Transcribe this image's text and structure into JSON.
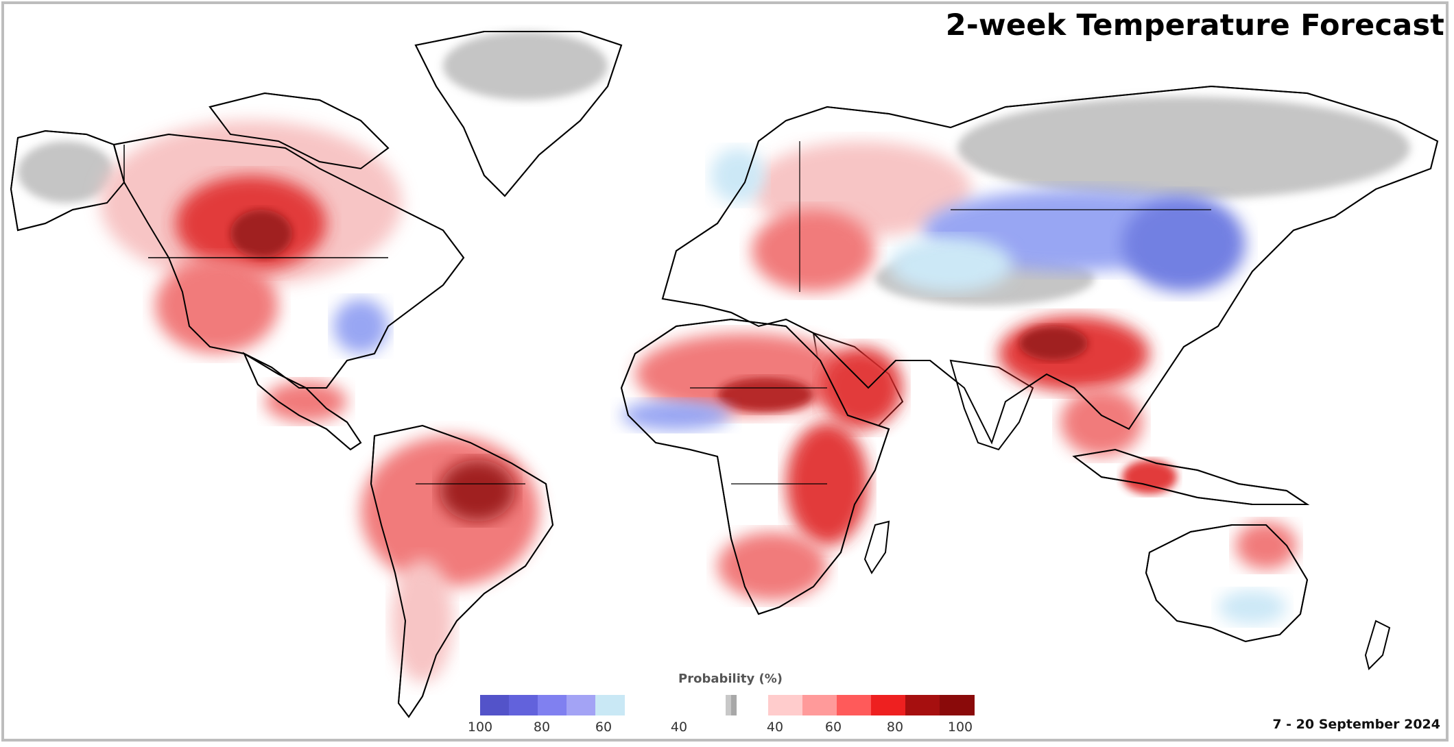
{
  "title": "2-week Temperature Forecast",
  "date_range": "7 - 20 September 2024",
  "legend": {
    "title": "Probability (%)",
    "colors": {
      "below": [
        "#5353c9",
        "#6262dc",
        "#8080f0",
        "#a3a3f5",
        "#c9e8f5"
      ],
      "neutral": [
        "#c8c8c8",
        "#a8a8a8"
      ],
      "above": [
        "#ffcccc",
        "#ff9a9a",
        "#ff5a5a",
        "#ee2020",
        "#a60f0f",
        "#8a0a0a"
      ]
    },
    "below_ticks": [
      "100",
      "80",
      "60",
      "40"
    ],
    "above_ticks": [
      "40",
      "60",
      "80",
      "100"
    ]
  },
  "palette": {
    "land": "#ffffff",
    "ocean": "#ffffff",
    "coast": "#000000",
    "gray": "#c0c0c0",
    "light_red": "#f7c0c0",
    "mid_red": "#f07070",
    "strong_red": "#e02a2a",
    "dark_red": "#980c0c",
    "light_blue": "#c8e6f6",
    "mid_blue": "#8f9ef2",
    "strong_blue": "#6674e0"
  }
}
